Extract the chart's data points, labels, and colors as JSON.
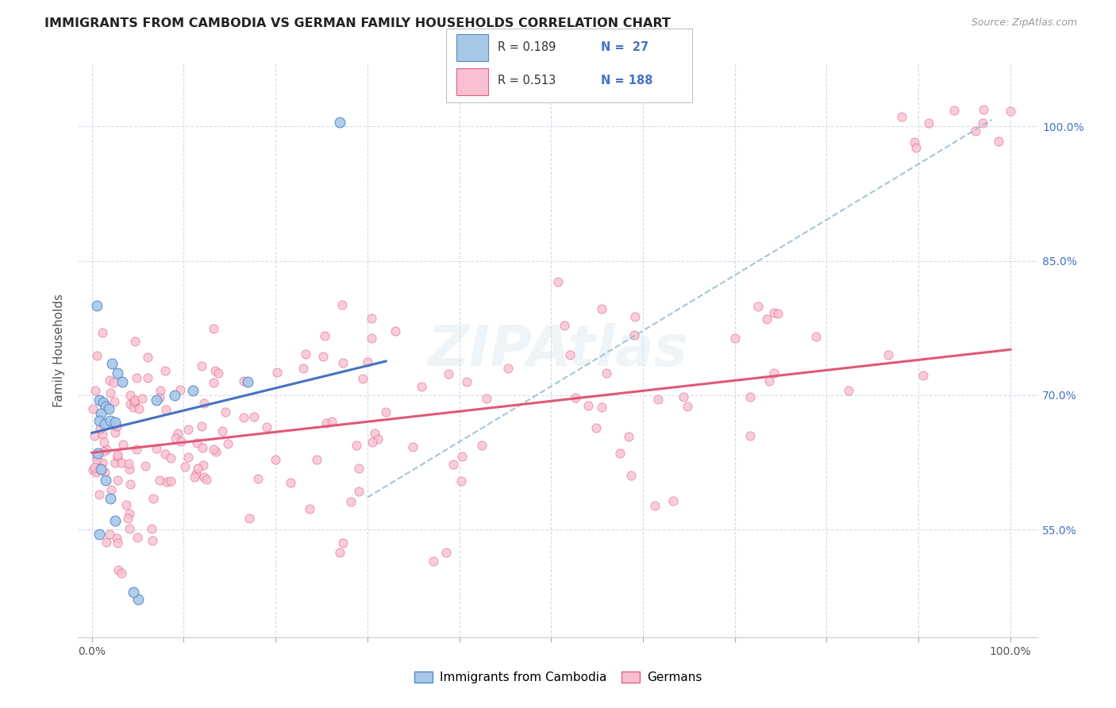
{
  "title": "IMMIGRANTS FROM CAMBODIA VS GERMAN FAMILY HOUSEHOLDS CORRELATION CHART",
  "source": "Source: ZipAtlas.com",
  "ylabel": "Family Households",
  "y_tick_labels": [
    "55.0%",
    "70.0%",
    "85.0%",
    "100.0%"
  ],
  "y_tick_values": [
    0.55,
    0.7,
    0.85,
    1.0
  ],
  "background_color": "#ffffff",
  "grid_color": "#c8d4e8",
  "title_color": "#222222",
  "source_color": "#999999",
  "watermark": "ZIPAtlas",
  "scatter_cambodia_color": "#a8c8e8",
  "scatter_cambodia_edge": "#5588cc",
  "scatter_german_color": "#f8c0d0",
  "scatter_german_edge": "#e06080",
  "cam_reg_color": "#4472c4",
  "ger_reg_color": "#e05878",
  "dashed_color": "#99bbd0",
  "legend_R_N_color": "#4472c4",
  "legend_R_text_color": "#333333",
  "cam_reg_intercept": 0.658,
  "cam_reg_slope": 0.25,
  "ger_reg_intercept": 0.636,
  "ger_reg_slope": 0.115,
  "dashed_intercept": 0.4,
  "dashed_slope": 0.62
}
